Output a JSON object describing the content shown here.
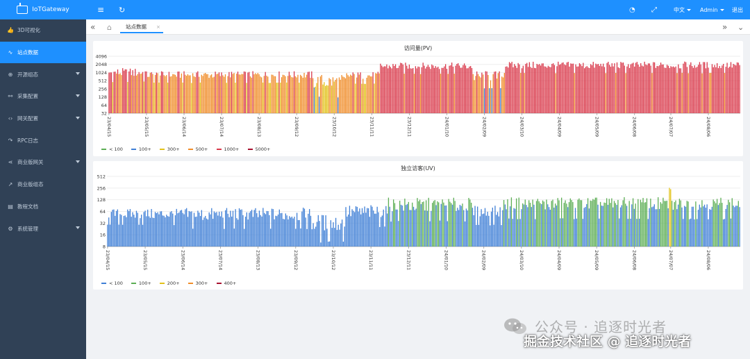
{
  "app": {
    "title": "IoTGateway"
  },
  "sidebar": {
    "items": [
      {
        "label": "3D可视化",
        "icon": "thumbs-up-icon",
        "glyph": "👍",
        "expandable": false,
        "active": false
      },
      {
        "label": "站点数据",
        "icon": "pulse-icon",
        "glyph": "∿",
        "expandable": false,
        "active": true
      },
      {
        "label": "开源组态",
        "icon": "component-icon",
        "glyph": "⊕",
        "expandable": true,
        "active": false
      },
      {
        "label": "采集配置",
        "icon": "link-icon",
        "glyph": "⚯",
        "expandable": true,
        "active": false
      },
      {
        "label": "网关配置",
        "icon": "code-icon",
        "glyph": "‹›",
        "expandable": true,
        "active": false
      },
      {
        "label": "RPC日志",
        "icon": "share-icon",
        "glyph": "↷",
        "expandable": false,
        "active": false
      },
      {
        "label": "商业版网关",
        "icon": "share-nodes-icon",
        "glyph": "⋖",
        "expandable": true,
        "active": false
      },
      {
        "label": "商业版组态",
        "icon": "line-chart-icon",
        "glyph": "↗",
        "expandable": false,
        "active": false
      },
      {
        "label": "教程文档",
        "icon": "document-icon",
        "glyph": "▤",
        "expandable": false,
        "active": false
      },
      {
        "label": "系统管理",
        "icon": "settings-icon",
        "glyph": "⚙",
        "expandable": true,
        "active": false
      }
    ]
  },
  "topbar": {
    "menu_icon": "≡",
    "refresh_icon": "↻",
    "dashboard_icon": "◔",
    "fullscreen_icon": "⤢",
    "language": "中文",
    "user": "Admin",
    "logout": "退出"
  },
  "tabs": {
    "back_icon": "«",
    "home_icon": "⌂",
    "active_tab": "站点数据",
    "close_glyph": "×",
    "forward_icon": "»",
    "dropdown_icon": "⌄"
  },
  "colors": {
    "brand": "#1e90ff",
    "sidebar_bg": "#304156",
    "sidebar_text": "#bfcbd9",
    "green": "#5cae54",
    "blue": "#3f7fd6",
    "yellow": "#e2c219",
    "orange": "#f08c28",
    "red": "#d9384a",
    "darkred": "#a8102f"
  },
  "chart_data": [
    {
      "type": "bar",
      "title": "访问量(PV)",
      "y_scale": "log2",
      "ylim": [
        32,
        4096
      ],
      "y_ticks": [
        "32",
        "64",
        "128",
        "256",
        "512",
        "1024",
        "2048",
        "4096"
      ],
      "x_ticks": [
        "23/04/15",
        "23/05/15",
        "23/06/14",
        "23/07/14",
        "23/08/13",
        "23/09/12",
        "23/10/12",
        "23/11/11",
        "23/12/11",
        "24/01/10",
        "24/02/09",
        "24/03/10",
        "24/04/09",
        "24/05/09",
        "24/06/08",
        "24/07/07",
        "24/08/06"
      ],
      "x_range": [
        "2023-04-15",
        "2024-08-31"
      ],
      "legend": [
        {
          "label": "< 100",
          "color": "#5cae54"
        },
        {
          "label": "100+",
          "color": "#3f7fd6"
        },
        {
          "label": "300+",
          "color": "#e2c219"
        },
        {
          "label": "500+",
          "color": "#f08c28"
        },
        {
          "label": "1000+",
          "color": "#d9384a"
        },
        {
          "label": "5000+",
          "color": "#a8102f"
        }
      ],
      "thresholds": [
        0,
        100,
        300,
        500,
        1000,
        5000
      ],
      "segments": [
        {
          "from": "2023-04-15",
          "to": "2023-05-15",
          "low": 450,
          "high": 1500
        },
        {
          "from": "2023-05-15",
          "to": "2023-09-25",
          "low": 420,
          "high": 1150
        },
        {
          "from": "2023-09-25",
          "to": "2023-10-22",
          "low": 120,
          "high": 900
        },
        {
          "from": "2023-10-22",
          "to": "2023-11-18",
          "low": 380,
          "high": 1100
        },
        {
          "from": "2023-11-18",
          "to": "2024-01-31",
          "low": 900,
          "high": 2400
        },
        {
          "from": "2024-01-31",
          "to": "2024-02-25",
          "low": 250,
          "high": 1200
        },
        {
          "from": "2024-02-25",
          "to": "2024-08-31",
          "low": 950,
          "high": 2600
        }
      ],
      "daily_estimate": true
    },
    {
      "type": "bar",
      "title": "独立访客(UV)",
      "y_scale": "log2",
      "ylim": [
        8,
        512
      ],
      "y_ticks": [
        "8",
        "16",
        "32",
        "64",
        "128",
        "256",
        "512"
      ],
      "x_ticks": [
        "23/04/15",
        "23/05/15",
        "23/06/14",
        "23/07/14",
        "23/08/13",
        "23/09/12",
        "23/10/12",
        "23/11/11",
        "23/12/11",
        "24/01/10",
        "24/02/09",
        "24/03/10",
        "24/04/09",
        "24/05/09",
        "24/06/08",
        "24/07/07",
        "24/08/06"
      ],
      "x_range": [
        "2023-04-15",
        "2024-08-31"
      ],
      "legend": [
        {
          "label": "< 100",
          "color": "#3f7fd6"
        },
        {
          "label": "100+",
          "color": "#5cae54"
        },
        {
          "label": "200+",
          "color": "#e2c219"
        },
        {
          "label": "300+",
          "color": "#f08c28"
        },
        {
          "label": "400+",
          "color": "#a8102f"
        }
      ],
      "thresholds": [
        0,
        100,
        200,
        300,
        400
      ],
      "segments": [
        {
          "from": "2023-04-15",
          "to": "2023-06-14",
          "low": 28,
          "high": 75
        },
        {
          "from": "2023-06-14",
          "to": "2023-09-25",
          "low": 22,
          "high": 80
        },
        {
          "from": "2023-09-25",
          "to": "2023-10-22",
          "low": 10,
          "high": 55
        },
        {
          "from": "2023-10-22",
          "to": "2023-11-25",
          "low": 25,
          "high": 95
        },
        {
          "from": "2023-11-25",
          "to": "2024-01-31",
          "low": 35,
          "high": 145
        },
        {
          "from": "2024-01-31",
          "to": "2024-02-25",
          "low": 28,
          "high": 90
        },
        {
          "from": "2024-02-25",
          "to": "2024-08-31",
          "low": 40,
          "high": 150
        }
      ],
      "peaks": [
        {
          "date": "2024-07-06",
          "value": 260
        },
        {
          "date": "2024-07-07",
          "value": 240
        }
      ],
      "daily_estimate": true
    }
  ],
  "watermark": {
    "top": "公众号 · 追逐时光者",
    "bottom": "掘金技术社区 @ 追逐时光者"
  }
}
